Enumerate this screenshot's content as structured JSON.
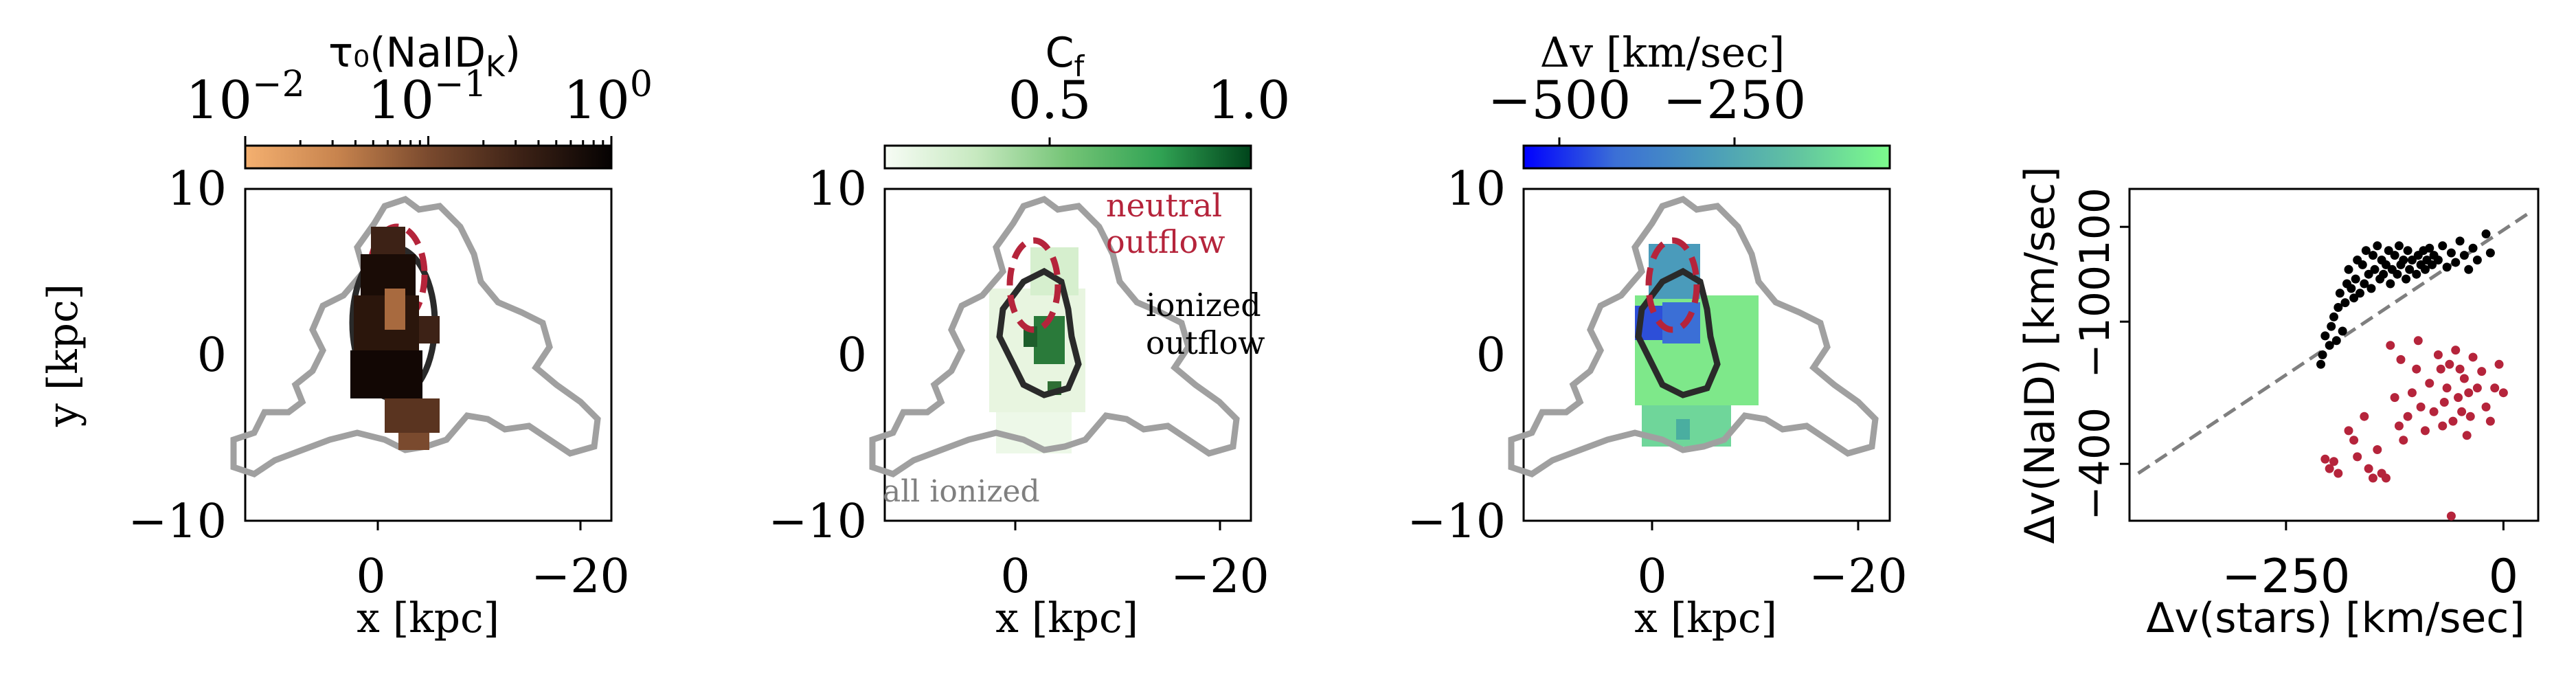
{
  "panels": [
    {
      "id": "tau",
      "colorbar": {
        "title": "τ₀(NaID",
        "title_sub": "K",
        "title_close": ")",
        "ticks": [
          {
            "base": "10",
            "exp": "−2"
          },
          {
            "base": "10",
            "exp": "−1"
          },
          {
            "base": "10",
            "exp": "0"
          }
        ],
        "colors": [
          "#f4b070",
          "#c8844e",
          "#7a4a2e",
          "#3d2216",
          "#050202"
        ]
      },
      "xlabel": "x [kpc]",
      "ylabel": "y [kpc]",
      "xticks": [
        "0",
        "−20"
      ],
      "yticks": [
        "10",
        "0",
        "−10"
      ]
    },
    {
      "id": "cf",
      "colorbar": {
        "title": "C",
        "title_sub": "f",
        "ticks": [
          "0.5",
          "1.0"
        ],
        "colors": [
          "#f7fcf5",
          "#c7e9c0",
          "#74c476",
          "#31a354",
          "#00441b"
        ]
      },
      "xlabel": "x [kpc]",
      "xticks": [
        "0",
        "−20"
      ],
      "yticks": [
        "10",
        "0",
        "−10"
      ],
      "annotations": {
        "neutral_1": "neutral",
        "neutral_2": "outflow",
        "ionized_1": "ionized",
        "ionized_2": "outflow",
        "all": "all ionized"
      },
      "annotation_colors": {
        "neutral": "#b5243b",
        "ionized": "#000000",
        "all": "#7f7f7f"
      }
    },
    {
      "id": "dv",
      "colorbar": {
        "title": "Δv [km/sec]",
        "ticks": [
          "−500",
          "−250"
        ],
        "colors": [
          "#0000ff",
          "#3b6fd6",
          "#4a9bbb",
          "#62c4a0",
          "#7cfc8c"
        ]
      },
      "xlabel": "x [kpc]",
      "xticks": [
        "0",
        "−20"
      ],
      "yticks": [
        "10",
        "0",
        "−10"
      ]
    }
  ],
  "chart_data": [
    {
      "type": "heatmap",
      "colorbar_label": "τ₀(NaID_K)",
      "colorbar_scale": "log",
      "colorbar_range": [
        0.01,
        1
      ],
      "xlabel": "x [kpc]",
      "ylabel": "y [kpc]",
      "xlim": [
        12,
        -20
      ],
      "ylim": [
        -10,
        10
      ]
    },
    {
      "type": "heatmap",
      "colorbar_label": "C_f",
      "colorbar_range": [
        0.0,
        1.0
      ],
      "xlabel": "x [kpc]",
      "xlim": [
        12,
        -20
      ],
      "ylim": [
        -10,
        10
      ],
      "contour_labels": [
        "neutral outflow",
        "ionized outflow",
        "all ionized"
      ]
    },
    {
      "type": "heatmap",
      "colorbar_label": "Δv [km/sec]",
      "colorbar_range": [
        -650,
        -100
      ],
      "xlabel": "x [kpc]",
      "xlim": [
        12,
        -20
      ],
      "ylim": [
        -10,
        10
      ]
    },
    {
      "type": "scatter",
      "xlabel": "Δv(stars) [km/sec]",
      "ylabel": "Δv(NaID) [km/sec]",
      "xlim": [
        -430,
        40
      ],
      "ylim": [
        -520,
        180
      ],
      "xticks": [
        "−250",
        "0"
      ],
      "yticks": [
        "100",
        "−100",
        "−400"
      ],
      "reference_line": {
        "style": "dashed",
        "color": "#7f7f7f",
        "points": [
          [
            -420,
            -420
          ],
          [
            30,
            130
          ]
        ]
      },
      "series": [
        {
          "color": "#000000",
          "points": [
            [
              -210,
              -190
            ],
            [
              -208,
              -170
            ],
            [
              -205,
              -130
            ],
            [
              -200,
              -150
            ],
            [
              -198,
              -110
            ],
            [
              -195,
              -90
            ],
            [
              -192,
              -140
            ],
            [
              -190,
              -70
            ],
            [
              -188,
              -40
            ],
            [
              -185,
              -120
            ],
            [
              -182,
              -60
            ],
            [
              -180,
              -20
            ],
            [
              -178,
              10
            ],
            [
              -175,
              -30
            ],
            [
              -172,
              -50
            ],
            [
              -170,
              -10
            ],
            [
              -168,
              30
            ],
            [
              -165,
              -40
            ],
            [
              -162,
              20
            ],
            [
              -160,
              -20
            ],
            [
              -158,
              50
            ],
            [
              -155,
              0
            ],
            [
              -152,
              -30
            ],
            [
              -150,
              40
            ],
            [
              -148,
              10
            ],
            [
              -145,
              60
            ],
            [
              -142,
              -10
            ],
            [
              -140,
              30
            ],
            [
              -138,
              0
            ],
            [
              -135,
              20
            ],
            [
              -132,
              50
            ],
            [
              -130,
              -20
            ],
            [
              -128,
              10
            ],
            [
              -125,
              40
            ],
            [
              -122,
              0
            ],
            [
              -120,
              60
            ],
            [
              -118,
              20
            ],
            [
              -115,
              30
            ],
            [
              -112,
              -10
            ],
            [
              -110,
              50
            ],
            [
              -108,
              10
            ],
            [
              -105,
              30
            ],
            [
              -100,
              0
            ],
            [
              -98,
              40
            ],
            [
              -95,
              20
            ],
            [
              -92,
              50
            ],
            [
              -90,
              10
            ],
            [
              -88,
              30
            ],
            [
              -85,
              55
            ],
            [
              -82,
              20
            ],
            [
              -80,
              40
            ],
            [
              -75,
              30
            ],
            [
              -70,
              60
            ],
            [
              -65,
              15
            ],
            [
              -60,
              45
            ],
            [
              -55,
              25
            ],
            [
              -50,
              70
            ],
            [
              -45,
              40
            ],
            [
              -40,
              10
            ],
            [
              -35,
              55
            ],
            [
              -30,
              30
            ],
            [
              -20,
              85
            ],
            [
              -15,
              45
            ]
          ]
        },
        {
          "color": "#b5243b",
          "points": [
            [
              -205,
              -390
            ],
            [
              -200,
              -410
            ],
            [
              -195,
              -395
            ],
            [
              -190,
              -420
            ],
            [
              -178,
              -330
            ],
            [
              -172,
              -350
            ],
            [
              -168,
              -385
            ],
            [
              -160,
              -300
            ],
            [
              -155,
              -410
            ],
            [
              -150,
              -430
            ],
            [
              -145,
              -370
            ],
            [
              -140,
              -420
            ],
            [
              -135,
              -430
            ],
            [
              -130,
              -150
            ],
            [
              -125,
              -260
            ],
            [
              -120,
              -320
            ],
            [
              -118,
              -180
            ],
            [
              -115,
              -350
            ],
            [
              -110,
              -300
            ],
            [
              -105,
              -250
            ],
            [
              -100,
              -200
            ],
            [
              -98,
              -140
            ],
            [
              -95,
              -280
            ],
            [
              -90,
              -330
            ],
            [
              -85,
              -230
            ],
            [
              -80,
              -290
            ],
            [
              -75,
              -170
            ],
            [
              -72,
              -200
            ],
            [
              -70,
              -320
            ],
            [
              -68,
              -270
            ],
            [
              -65,
              -240
            ],
            [
              -62,
              -190
            ],
            [
              -58,
              -310
            ],
            [
              -55,
              -160
            ],
            [
              -52,
              -260
            ],
            [
              -50,
              -200
            ],
            [
              -48,
              -290
            ],
            [
              -45,
              -220
            ],
            [
              -42,
              -340
            ],
            [
              -40,
              -250
            ],
            [
              -38,
              -300
            ],
            [
              -35,
              -175
            ],
            [
              -30,
              -240
            ],
            [
              -25,
              -205
            ],
            [
              -20,
              -280
            ],
            [
              -15,
              -310
            ],
            [
              -10,
              -240
            ],
            [
              -5,
              -190
            ],
            [
              0,
              -250
            ],
            [
              -60,
              -510
            ]
          ]
        }
      ]
    }
  ]
}
